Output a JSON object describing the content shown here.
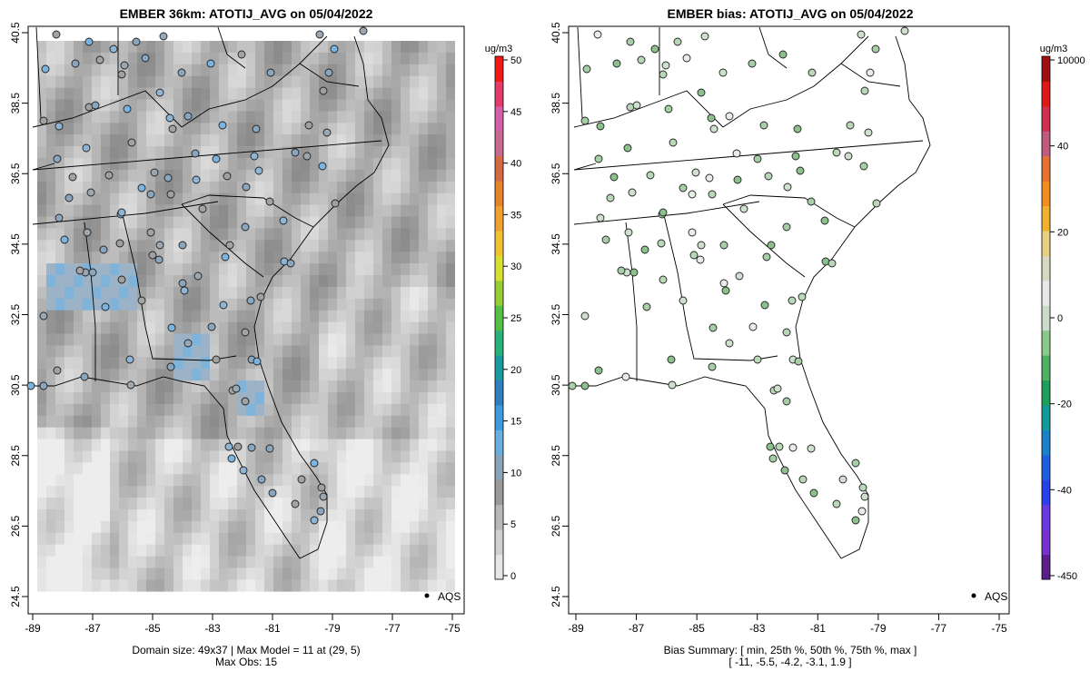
{
  "left_panel": {
    "title": "EMBER 36km: ATOTIJ_AVG on 05/04/2022",
    "footer_line1": "Domain size: 49x37 | Max Model = 11 at (29, 5)",
    "footer_line2": "Max Obs: 15",
    "legend_label": "AQS",
    "colorbar": {
      "units": "ug/m3",
      "ticks": [
        "0",
        "5",
        "10",
        "15",
        "20",
        "25",
        "30",
        "35",
        "40",
        "45",
        "50"
      ],
      "colors": [
        "#e6e6e6",
        "#d0d0d0",
        "#b8b8b8",
        "#9a9a9a",
        "#8aa3b8",
        "#6aaee0",
        "#3d9be0",
        "#2f7fc0",
        "#1a9aa0",
        "#2bb07a",
        "#55bf45",
        "#99cc33",
        "#d8df33",
        "#f0c330",
        "#f0a030",
        "#e6832a",
        "#d46a44",
        "#c86a90",
        "#d65fa8",
        "#e63a6a",
        "#f21818"
      ]
    }
  },
  "right_panel": {
    "title": "EMBER bias: ATOTIJ_AVG on 05/04/2022",
    "footer_line1": "Bias Summary: [ min, 25th %, 50th %, 75th %, max ]",
    "footer_line2": "[ -11,   -5.5,   -4.2,   -3.1,   1.9 ]",
    "legend_label": "AQS",
    "colorbar": {
      "units": "ug/m3",
      "ticks": [
        "-450",
        "-40",
        "-20",
        "0",
        "20",
        "40",
        "10000"
      ],
      "colors": [
        "#5a1f8c",
        "#7a2fd0",
        "#6a3ae0",
        "#2a40e8",
        "#1a5fe0",
        "#1a80c8",
        "#139a9a",
        "#1f9e5a",
        "#4fb060",
        "#8cc88c",
        "#c8dcc8",
        "#e8e8e8",
        "#d8d8c0",
        "#e8d080",
        "#f0b030",
        "#f08c20",
        "#e87030",
        "#c05a80",
        "#d03050",
        "#e01818",
        "#a01010"
      ]
    }
  },
  "axes": {
    "x_ticks": [
      "-89",
      "-87",
      "-85",
      "-83",
      "-81",
      "-79",
      "-77",
      "-75"
    ],
    "y_ticks": [
      "24.5",
      "26.5",
      "28.5",
      "30.5",
      "32.5",
      "34.5",
      "36.5",
      "38.5",
      "40.5"
    ]
  }
}
